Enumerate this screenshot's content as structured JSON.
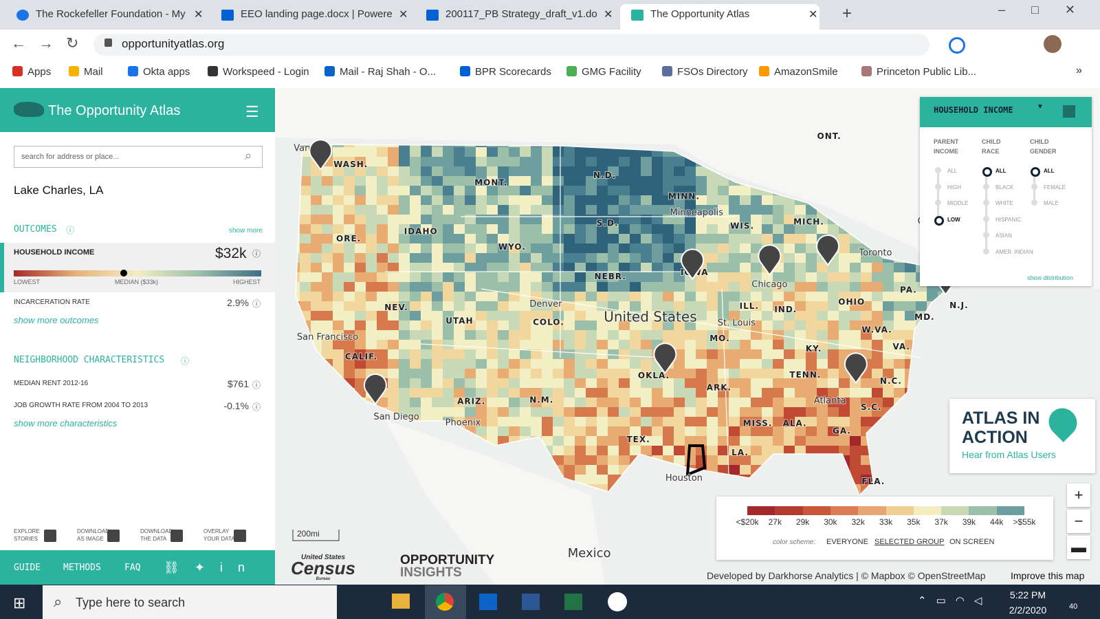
{
  "browser": {
    "tabs": [
      "The Rockefeller Foundation - My",
      "EEO landing page.docx | Powere",
      "200117_PB Strategy_draft_v1.do",
      "The Opportunity Atlas"
    ],
    "url": "opportunityatlas.org",
    "bookmarks": [
      "Apps",
      "Mail",
      "Okta apps",
      "Workspeed - Login",
      "Mail - Raj Shah - O...",
      "BPR Scorecards",
      "GMG Facility",
      "FSOs Directory",
      "AmazonSmile",
      "Princeton Public Lib..."
    ]
  },
  "sidebar": {
    "title": "The Opportunity Atlas",
    "search_placeholder": "search for address or place...",
    "location": "Lake Charles, LA",
    "outcomes": {
      "heading": "OUTCOMES",
      "show_more": "show more",
      "selected": {
        "label": "HOUSEHOLD INCOME",
        "value": "$32k",
        "lowest": "LOWEST",
        "median": "MEDIAN ($33k)",
        "highest": "HIGHEST"
      },
      "rows": [
        {
          "label": "INCARCERATION RATE",
          "value": "2.9%"
        }
      ],
      "link": "show more outcomes"
    },
    "neighborhood": {
      "heading": "NEIGHBORHOOD CHARACTERISTICS",
      "rows": [
        {
          "label": "MEDIAN RENT 2012-16",
          "value": "$761"
        },
        {
          "label": "JOB GROWTH RATE FROM 2004 TO 2013",
          "value": "-0.1%"
        }
      ],
      "link": "show more characteristics"
    },
    "tools": [
      [
        "EXPLORE",
        "STORIES"
      ],
      [
        "DOWNLOAD",
        "AS IMAGE"
      ],
      [
        "DOWNLOAD",
        "THE DATA"
      ],
      [
        "OVERLAY",
        "YOUR DATA"
      ]
    ],
    "footer": [
      "GUIDE",
      "METHODS",
      "FAQ"
    ]
  },
  "map": {
    "labels": [
      "WASH.",
      "MONT.",
      "N.D.",
      "MINN.",
      "Minneapolis",
      "S.D.",
      "WIS.",
      "MICH.",
      "IDAHO",
      "ORE.",
      "WYO.",
      "NEBR.",
      "IOWA",
      "Chicago",
      "Toronto",
      "PA.",
      "N.J.",
      "OHIO",
      "ILL.",
      "IND.",
      "NEV.",
      "UTAH",
      "Denver",
      "COLO.",
      "United States",
      "St. Louis",
      "MD.",
      "W.VA.",
      "San Francisco",
      "MO.",
      "KY.",
      "VA.",
      "CALIF.",
      "OKLA.",
      "TENN.",
      "N.C.",
      "ARK.",
      "Atlanta",
      "S.C.",
      "ARIZ.",
      "N.M.",
      "Phoenix",
      "San Diego",
      "MISS.",
      "ALA.",
      "GA.",
      "TEX.",
      "LA.",
      "Houston",
      "FLA.",
      "Mexico",
      "ONT.",
      "Vanc",
      "Ott"
    ],
    "scale": "200mi",
    "census": [
      "United States",
      "Census",
      "Bureau"
    ],
    "insights": [
      "OPPORTUNITY",
      "INSIGHTS"
    ],
    "attribution": "Developed by Darkhorse Analytics | © Mapbox © OpenStreetMap",
    "improve": "Improve this map"
  },
  "panel": {
    "title": "HOUSEHOLD INCOME",
    "columns": [
      {
        "header": [
          "PARENT",
          "INCOME"
        ],
        "options": [
          "ALL",
          "HIGH",
          "MIDDLE",
          "LOW"
        ],
        "selected": 3
      },
      {
        "header": [
          "CHILD",
          "RACE"
        ],
        "options": [
          "ALL",
          "BLACK",
          "WHITE",
          "HISPANIC",
          "ASIAN",
          "AMER. INDIAN"
        ],
        "selected": 0
      },
      {
        "header": [
          "CHILD",
          "GENDER"
        ],
        "options": [
          "ALL",
          "FEMALE",
          "MALE"
        ],
        "selected": 0
      }
    ],
    "link": "show distribution"
  },
  "promo": {
    "lines": [
      "ATLAS IN",
      "ACTION"
    ],
    "sub": "Hear from Atlas Users"
  },
  "legend": {
    "labels": [
      "<$20k",
      "27k",
      "29k",
      "30k",
      "32k",
      "33k",
      "35k",
      "37k",
      "39k",
      "44k",
      ">$55k"
    ],
    "scheme_label": "color scheme:",
    "schemes": [
      "EVERYONE",
      "SELECTED GROUP",
      "ON SCREEN"
    ],
    "selected_scheme": 1
  },
  "taskbar": {
    "search": "Type here to search",
    "time": "5:22 PM",
    "date": "2/2/2020",
    "notifications": "40"
  }
}
